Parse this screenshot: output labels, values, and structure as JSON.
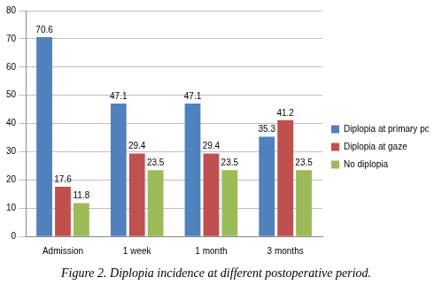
{
  "chart_data": {
    "type": "bar",
    "title": "Figure 2. Diplopia incidence at different postoperative period.",
    "categories": [
      "Admission",
      "1 week",
      "1 month",
      "3 months"
    ],
    "series": [
      {
        "name": "Diplopia at primary position",
        "color": "#4f81bd",
        "values": [
          70.6,
          47.1,
          47.1,
          35.3
        ]
      },
      {
        "name": "Diplopia at gaze",
        "color": "#c0504d",
        "values": [
          17.6,
          29.4,
          29.4,
          41.2
        ]
      },
      {
        "name": "No diplopia",
        "color": "#9bbb59",
        "values": [
          11.8,
          23.5,
          23.5,
          23.5
        ]
      }
    ],
    "ylim": [
      0,
      80
    ],
    "yticks": [
      0,
      10,
      20,
      30,
      40,
      50,
      60,
      70,
      80
    ],
    "grid": true,
    "legend": "right",
    "data_labels": true
  }
}
